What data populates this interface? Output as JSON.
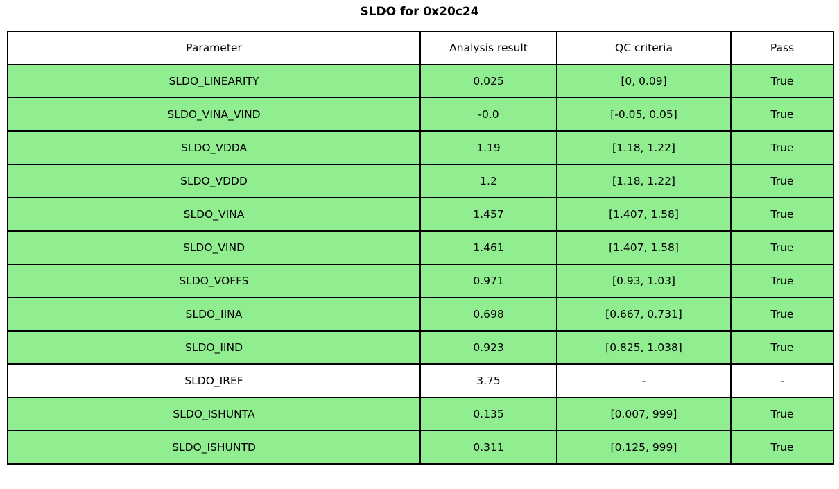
{
  "title": "SLDO for 0x20c24",
  "colors": {
    "pass_row_green": "#90ee90",
    "neutral_row_white": "#ffffff",
    "border_black": "#000000"
  },
  "chart_data": {
    "type": "table",
    "title": "SLDO for 0x20c24",
    "columns": [
      "Parameter",
      "Analysis result",
      "QC criteria",
      "Pass"
    ],
    "rows": [
      {
        "parameter": "SLDO_LINEARITY",
        "analysis_result": "0.025",
        "qc_criteria": "[0, 0.09]",
        "pass": "True",
        "highlighted": true
      },
      {
        "parameter": "SLDO_VINA_VIND",
        "analysis_result": "-0.0",
        "qc_criteria": "[-0.05, 0.05]",
        "pass": "True",
        "highlighted": true
      },
      {
        "parameter": "SLDO_VDDA",
        "analysis_result": "1.19",
        "qc_criteria": "[1.18, 1.22]",
        "pass": "True",
        "highlighted": true
      },
      {
        "parameter": "SLDO_VDDD",
        "analysis_result": "1.2",
        "qc_criteria": "[1.18, 1.22]",
        "pass": "True",
        "highlighted": true
      },
      {
        "parameter": "SLDO_VINA",
        "analysis_result": "1.457",
        "qc_criteria": "[1.407, 1.58]",
        "pass": "True",
        "highlighted": true
      },
      {
        "parameter": "SLDO_VIND",
        "analysis_result": "1.461",
        "qc_criteria": "[1.407, 1.58]",
        "pass": "True",
        "highlighted": true
      },
      {
        "parameter": "SLDO_VOFFS",
        "analysis_result": "0.971",
        "qc_criteria": "[0.93, 1.03]",
        "pass": "True",
        "highlighted": true
      },
      {
        "parameter": "SLDO_IINA",
        "analysis_result": "0.698",
        "qc_criteria": "[0.667, 0.731]",
        "pass": "True",
        "highlighted": true
      },
      {
        "parameter": "SLDO_IIND",
        "analysis_result": "0.923",
        "qc_criteria": "[0.825, 1.038]",
        "pass": "True",
        "highlighted": true
      },
      {
        "parameter": "SLDO_IREF",
        "analysis_result": "3.75",
        "qc_criteria": "-",
        "pass": "-",
        "highlighted": false
      },
      {
        "parameter": "SLDO_ISHUNTA",
        "analysis_result": "0.135",
        "qc_criteria": "[0.007, 999]",
        "pass": "True",
        "highlighted": true
      },
      {
        "parameter": "SLDO_ISHUNTD",
        "analysis_result": "0.311",
        "qc_criteria": "[0.125, 999]",
        "pass": "True",
        "highlighted": true
      }
    ]
  }
}
